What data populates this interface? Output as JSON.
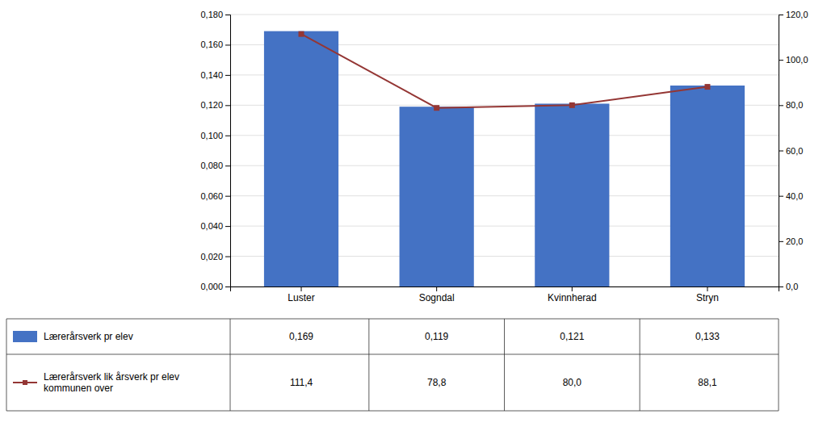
{
  "chart_data": {
    "type": "bar",
    "categories": [
      "Luster",
      "Sogndal",
      "Kvinnherad",
      "Stryn"
    ],
    "series": [
      {
        "name": "Lærerårsverk pr elev",
        "type": "bar",
        "color": "#4472C4",
        "values": [
          0.169,
          0.119,
          0.121,
          0.133
        ],
        "value_labels": [
          "0,169",
          "0,119",
          "0,121",
          "0,133"
        ]
      },
      {
        "name": "Lærerårsverk lik årsverk pr elev\nkommunen over",
        "type": "line",
        "axis": "y2",
        "color": "#943634",
        "marker": "square",
        "values": [
          111.4,
          78.8,
          80.0,
          88.1
        ],
        "value_labels": [
          "111,4",
          "78,8",
          "80,0",
          "88,1"
        ]
      }
    ],
    "ylim": [
      0.0,
      0.18
    ],
    "yticks": [
      {
        "value": 0.0,
        "label": "0,000"
      },
      {
        "value": 0.02,
        "label": "0,020"
      },
      {
        "value": 0.04,
        "label": "0,040"
      },
      {
        "value": 0.06,
        "label": "0,060"
      },
      {
        "value": 0.08,
        "label": "0,080"
      },
      {
        "value": 0.1,
        "label": "0,100"
      },
      {
        "value": 0.12,
        "label": "0,120"
      },
      {
        "value": 0.14,
        "label": "0,140"
      },
      {
        "value": 0.16,
        "label": "0,160"
      },
      {
        "value": 0.18,
        "label": "0,180"
      }
    ],
    "y2lim": [
      0.0,
      120.0
    ],
    "y2ticks": [
      {
        "value": 0.0,
        "label": "0,0"
      },
      {
        "value": 20.0,
        "label": "20,0"
      },
      {
        "value": 40.0,
        "label": "40,0"
      },
      {
        "value": 60.0,
        "label": "60,0"
      },
      {
        "value": 80.0,
        "label": "80,0"
      },
      {
        "value": 100.0,
        "label": "100,0"
      },
      {
        "value": 120.0,
        "label": "120,0"
      }
    ],
    "grid": true,
    "legend": "bottom",
    "data_labels": true
  }
}
